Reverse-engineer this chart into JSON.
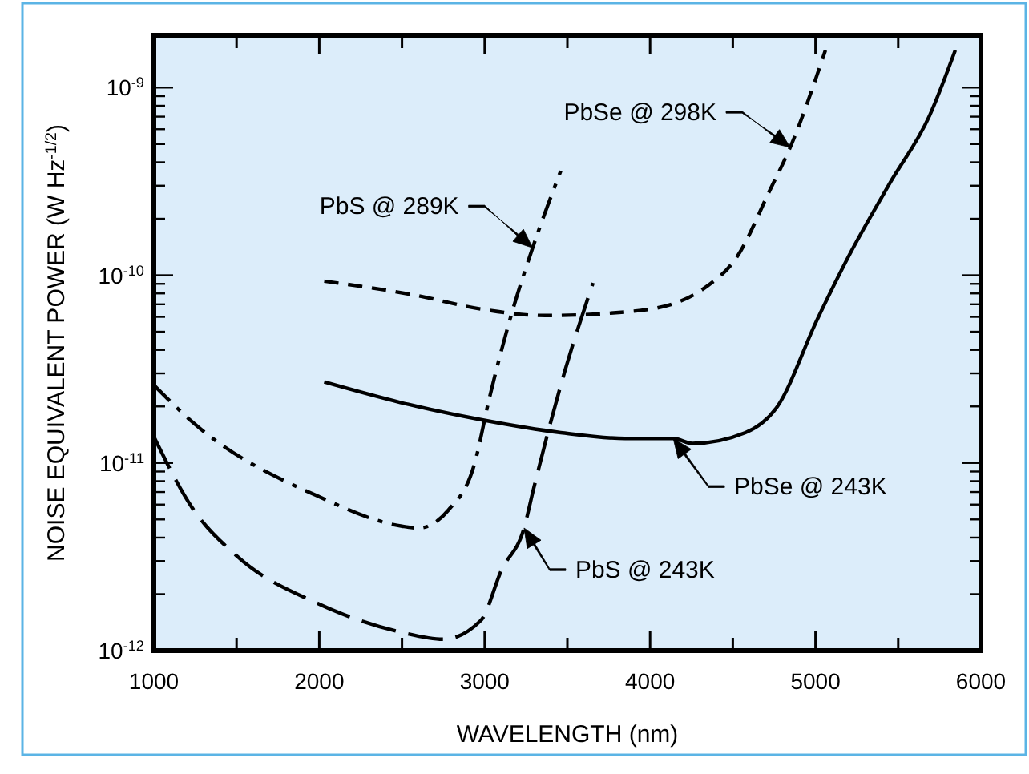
{
  "chart_data": {
    "type": "line",
    "xlabel": "WAVELENGTH (nm)",
    "ylabel": "NOISE EQUIVALENT POWER (W Hz$^{-1/2}$)",
    "log": "y",
    "grid": false,
    "marker": "none",
    "xlim": [
      1000,
      6000
    ],
    "xticks": [
      1000,
      {
        "value": 1500,
        "label": null
      },
      2000,
      {
        "value": 2500,
        "label": null
      },
      3000,
      {
        "value": 3500,
        "label": null
      },
      4000,
      {
        "value": 4500,
        "label": null
      },
      5000,
      {
        "value": 5500,
        "label": null
      },
      6000
    ],
    "ylim": [
      1e-12,
      1.9e-09
    ],
    "yticks": [
      {
        "value": 1e-12,
        "label": "10$^{-12}$"
      },
      {
        "value": 2e-12,
        "label": null
      },
      {
        "value": 3e-12,
        "label": null
      },
      {
        "value": 4e-12,
        "label": null
      },
      {
        "value": 5e-12,
        "label": null
      },
      {
        "value": 6e-12,
        "label": null
      },
      {
        "value": 7e-12,
        "label": null
      },
      {
        "value": 8e-12,
        "label": null
      },
      {
        "value": 9e-12,
        "label": null
      },
      {
        "value": 1e-11,
        "label": "10$^{-11}$"
      },
      {
        "value": 2e-11,
        "label": null
      },
      {
        "value": 3e-11,
        "label": null
      },
      {
        "value": 4e-11,
        "label": null
      },
      {
        "value": 5e-11,
        "label": null
      },
      {
        "value": 6e-11,
        "label": null
      },
      {
        "value": 7e-11,
        "label": null
      },
      {
        "value": 8e-11,
        "label": null
      },
      {
        "value": 9e-11,
        "label": null
      },
      {
        "value": 1e-10,
        "label": "10$^{-10}$"
      },
      {
        "value": 2e-10,
        "label": null
      },
      {
        "value": 3e-10,
        "label": null
      },
      {
        "value": 4e-10,
        "label": null
      },
      {
        "value": 5e-10,
        "label": null
      },
      {
        "value": 6e-10,
        "label": null
      },
      {
        "value": 7e-10,
        "label": null
      },
      {
        "value": 8e-10,
        "label": null
      },
      {
        "value": 9e-10,
        "label": null
      },
      {
        "value": 1e-09,
        "label": "10$^{-9}$"
      }
    ],
    "series": [
      {
        "name": "PbS @ 289K",
        "color": "#000000",
        "line_style": "dashdot",
        "x": [
          1000,
          1230,
          2000,
          2500,
          2600,
          2780,
          2940,
          3025,
          3150,
          3290,
          3460
        ],
        "values": [
          2.6e-11,
          1.66e-11,
          6.6e-12,
          4.6e-12,
          4.5e-12,
          5.6e-12,
          1e-11,
          2.15e-11,
          5.7e-11,
          1.4e-10,
          3.6e-10
        ]
      },
      {
        "name": "PbSe @ 298K",
        "color": "#000000",
        "line_style": "dashed",
        "x": [
          2030,
          2590,
          2977,
          3364,
          3946,
          4333,
          4527,
          4721,
          4847,
          5060
        ],
        "values": [
          9.3e-11,
          7.8e-11,
          6.6e-11,
          6.1e-11,
          6.5e-11,
          8.6e-11,
          1.26e-10,
          2.8e-10,
          4.8e-10,
          1.58e-09
        ]
      },
      {
        "name": "PbSe @ 243K",
        "color": "#000000",
        "line_style": "solid",
        "x": [
          2030,
          2490,
          2977,
          3460,
          3850,
          4140,
          4256,
          4576,
          4770,
          5010,
          5200,
          5450,
          5690,
          5845
        ],
        "values": [
          2.7e-11,
          2.1e-11,
          1.7e-11,
          1.45e-11,
          1.35e-11,
          1.35e-11,
          1.27e-11,
          1.45e-11,
          2e-11,
          5.8e-11,
          1.26e-10,
          3.1e-10,
          7.1e-10,
          1.58e-09
        ]
      },
      {
        "name": "PbS @ 243K",
        "color": "#000000",
        "line_style": "longdash",
        "x": [
          1000,
          1230,
          1500,
          2000,
          2500,
          2750,
          2977,
          3103,
          3238,
          3296,
          3490,
          3655
        ],
        "values": [
          1.38e-11,
          5.8e-12,
          3.2e-12,
          1.77e-12,
          1.25e-12,
          1.15e-12,
          1.45e-12,
          2.7e-12,
          4.5e-12,
          7.3e-12,
          3.2e-11,
          9.1e-11
        ]
      }
    ]
  }
}
